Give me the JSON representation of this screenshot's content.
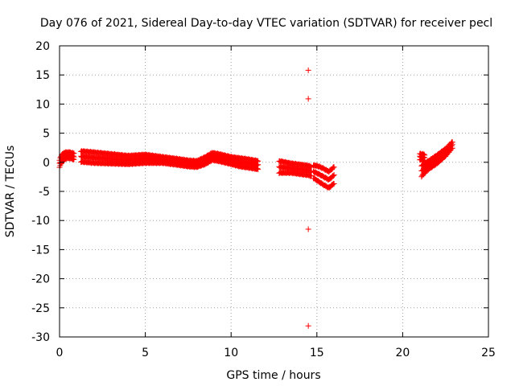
{
  "colors": {
    "points": "#ff0000",
    "axis": "#000000",
    "grid": "#a0a0a0"
  },
  "chart_data": {
    "type": "scatter",
    "title": "Day 076 of 2021, Sidereal Day-to-day VTEC variation (SDTVAR) for receiver pecl",
    "xlabel": "GPS time / hours",
    "ylabel": "SDTVAR / TECUs",
    "xlim": [
      0,
      25
    ],
    "ylim": [
      -30,
      20
    ],
    "xticks": [
      0,
      5,
      10,
      15,
      20,
      25
    ],
    "yticks": [
      -30,
      -25,
      -20,
      -15,
      -10,
      -5,
      0,
      5,
      10,
      15,
      20
    ],
    "grid": true,
    "marker": "+",
    "series": [
      {
        "name": "SDTVAR",
        "note": "Each segment is a dense run of samples; band gives the vertical spread of the point cloud at each time.",
        "segments": [
          {
            "x": [
              0.0,
              0.1,
              0.25,
              0.4,
              0.6,
              0.85
            ],
            "center": [
              -0.2,
              0.5,
              1.0,
              1.2,
              1.2,
              1.0
            ],
            "band": [
              0.6,
              0.7,
              0.6,
              0.5,
              0.5,
              0.5
            ]
          },
          {
            "x": [
              1.25,
              2.0,
              3.0,
              4.0,
              5.0,
              6.0,
              6.8,
              7.5,
              8.0,
              8.5,
              8.9,
              9.3,
              10.0,
              10.5,
              11.0,
              11.6
            ],
            "center": [
              1.0,
              0.8,
              0.6,
              0.4,
              0.6,
              0.4,
              0.1,
              -0.2,
              -0.3,
              0.3,
              1.0,
              0.8,
              0.3,
              0.0,
              -0.2,
              -0.5
            ],
            "band": [
              0.9,
              0.9,
              0.8,
              0.7,
              0.7,
              0.5,
              0.5,
              0.5,
              0.5,
              0.6,
              0.6,
              0.6,
              0.6,
              0.7,
              0.7,
              0.7
            ]
          },
          {
            "x": [
              12.8,
              13.5,
              14.0,
              14.5,
              14.7
            ],
            "center": [
              -0.8,
              -1.0,
              -1.2,
              -1.4,
              -1.6
            ],
            "band": [
              1.0,
              0.8,
              0.8,
              0.8,
              0.8
            ]
          },
          {
            "x": [
              14.8,
              15.1,
              15.4,
              15.7,
              16.0
            ],
            "center": [
              -1.6,
              -2.0,
              -2.5,
              -3.0,
              -2.2
            ],
            "band": [
              1.1,
              1.3,
              1.4,
              1.4,
              1.4
            ]
          },
          {
            "x": [
              21.0,
              21.1,
              21.3
            ],
            "center": [
              1.0,
              0.9,
              0.8
            ],
            "band": [
              0.5,
              0.5,
              0.5
            ]
          },
          {
            "x": [
              21.1,
              21.5,
              22.0,
              22.5,
              22.9
            ],
            "center": [
              -1.5,
              -0.5,
              0.5,
              1.7,
              3.0
            ],
            "band": [
              0.9,
              0.7,
              0.7,
              0.6,
              0.5
            ]
          }
        ],
        "outliers": [
          {
            "x": 14.5,
            "y": 15.8
          },
          {
            "x": 14.5,
            "y": 10.9
          },
          {
            "x": 14.5,
            "y": -11.5
          },
          {
            "x": 14.5,
            "y": -28.1
          }
        ]
      }
    ]
  }
}
